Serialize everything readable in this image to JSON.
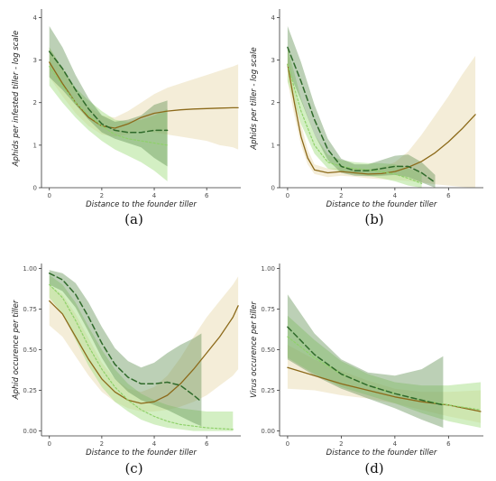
{
  "colors": {
    "light_green": "#8fd16a",
    "dark_green": "#2f6a2a",
    "brown": "#8c6a1a",
    "ribbon_tan": "#ebdfb8",
    "ribbon_light": "#a8df88",
    "ribbon_dark": "#5f8f50"
  },
  "chart_data": [
    {
      "id": "a",
      "type": "line",
      "panel_label": "(a)",
      "xlabel": "Distance to the founder tiller",
      "ylabel": "Aphids per infested tiller - log scale",
      "xlim": [
        -0.3,
        7.3
      ],
      "ylim": [
        0,
        4.2
      ],
      "xticks": [
        0,
        2,
        4,
        6
      ],
      "yticks": [
        0,
        1,
        2,
        3,
        4
      ],
      "x_tick_labels": [
        "0",
        "2",
        "4",
        "6"
      ],
      "y_tick_labels": [
        "0",
        "1",
        "2",
        "3",
        "4"
      ],
      "grid": false,
      "series": [
        {
          "style": "solid",
          "color": "brown",
          "ribbon": "ribbon_tan",
          "x": [
            0,
            0.5,
            1,
            1.5,
            2,
            2.5,
            3,
            3.5,
            4,
            4.5,
            5,
            5.5,
            6,
            6.5,
            7,
            7.2
          ],
          "y": [
            2.95,
            2.45,
            2.0,
            1.65,
            1.45,
            1.4,
            1.5,
            1.65,
            1.75,
            1.8,
            1.83,
            1.85,
            1.86,
            1.87,
            1.88,
            1.88
          ],
          "lower": [
            2.6,
            2.15,
            1.75,
            1.45,
            1.25,
            1.2,
            1.25,
            1.35,
            1.3,
            1.25,
            1.2,
            1.15,
            1.1,
            1.0,
            0.95,
            0.9
          ],
          "upper": [
            3.3,
            2.8,
            2.3,
            1.9,
            1.7,
            1.65,
            1.8,
            2.0,
            2.2,
            2.35,
            2.45,
            2.55,
            2.65,
            2.75,
            2.85,
            2.9
          ]
        },
        {
          "style": "dotted",
          "color": "light_green",
          "ribbon": "ribbon_light",
          "x": [
            0,
            0.5,
            1,
            1.5,
            2,
            2.5,
            3,
            3.5,
            4,
            4.5
          ],
          "y": [
            2.85,
            2.4,
            2.0,
            1.7,
            1.45,
            1.25,
            1.15,
            1.1,
            1.05,
            1.0
          ],
          "lower": [
            2.4,
            2.0,
            1.65,
            1.35,
            1.1,
            0.9,
            0.75,
            0.6,
            0.4,
            0.15
          ],
          "upper": [
            3.3,
            2.8,
            2.35,
            2.05,
            1.8,
            1.6,
            1.55,
            1.6,
            1.7,
            1.85
          ]
        },
        {
          "style": "dashed",
          "color": "dark_green",
          "ribbon": "ribbon_dark",
          "x": [
            0,
            0.5,
            1,
            1.5,
            2,
            2.5,
            3,
            3.5,
            4,
            4.5
          ],
          "y": [
            3.2,
            2.8,
            2.3,
            1.85,
            1.5,
            1.35,
            1.3,
            1.3,
            1.35,
            1.35
          ],
          "lower": [
            2.6,
            2.3,
            1.95,
            1.6,
            1.3,
            1.15,
            1.05,
            0.95,
            0.7,
            0.5
          ],
          "upper": [
            3.8,
            3.3,
            2.65,
            2.1,
            1.7,
            1.55,
            1.6,
            1.7,
            1.95,
            2.05
          ]
        }
      ]
    },
    {
      "id": "b",
      "type": "line",
      "panel_label": "(b)",
      "xlabel": "Distance to the founder tiller",
      "ylabel": "Aphids per tiller - log scale",
      "xlim": [
        -0.3,
        7.3
      ],
      "ylim": [
        0,
        4.2
      ],
      "xticks": [
        0,
        2,
        4,
        6
      ],
      "yticks": [
        0,
        1,
        2,
        3,
        4
      ],
      "x_tick_labels": [
        "0",
        "2",
        "4",
        "6"
      ],
      "y_tick_labels": [
        "0",
        "1",
        "2",
        "3",
        "4"
      ],
      "grid": false,
      "series": [
        {
          "style": "solid",
          "color": "brown",
          "ribbon": "ribbon_tan",
          "x": [
            0,
            0.25,
            0.5,
            0.75,
            1,
            1.5,
            2,
            2.5,
            3,
            3.5,
            4,
            4.5,
            5,
            5.5,
            6,
            6.5,
            7
          ],
          "y": [
            2.9,
            2.0,
            1.2,
            0.7,
            0.42,
            0.35,
            0.38,
            0.35,
            0.32,
            0.33,
            0.38,
            0.48,
            0.62,
            0.82,
            1.08,
            1.38,
            1.72
          ],
          "lower": [
            2.5,
            1.7,
            1.0,
            0.55,
            0.32,
            0.25,
            0.28,
            0.26,
            0.22,
            0.2,
            0.18,
            0.16,
            0.12,
            0.08,
            0.05,
            0.02,
            0.0
          ],
          "upper": [
            3.3,
            2.35,
            1.5,
            0.9,
            0.55,
            0.45,
            0.48,
            0.45,
            0.44,
            0.48,
            0.6,
            0.85,
            1.25,
            1.7,
            2.15,
            2.65,
            3.1
          ]
        },
        {
          "style": "dotted",
          "color": "light_green",
          "ribbon": "ribbon_light",
          "x": [
            0,
            0.5,
            1,
            1.5,
            2,
            2.5,
            3,
            3.5,
            4,
            4.5,
            5
          ],
          "y": [
            2.9,
            1.8,
            1.0,
            0.6,
            0.5,
            0.45,
            0.42,
            0.38,
            0.32,
            0.22,
            0.1
          ],
          "lower": [
            2.5,
            1.5,
            0.8,
            0.45,
            0.38,
            0.32,
            0.28,
            0.22,
            0.15,
            0.05,
            0.0
          ],
          "upper": [
            3.3,
            2.1,
            1.25,
            0.78,
            0.65,
            0.6,
            0.58,
            0.58,
            0.55,
            0.45,
            0.35
          ]
        },
        {
          "style": "dashed",
          "color": "dark_green",
          "ribbon": "ribbon_dark",
          "x": [
            0,
            0.5,
            1,
            1.5,
            2,
            2.5,
            3,
            3.5,
            4,
            4.5,
            5,
            5.5
          ],
          "y": [
            3.3,
            2.5,
            1.6,
            0.9,
            0.5,
            0.4,
            0.4,
            0.45,
            0.5,
            0.5,
            0.35,
            0.12
          ],
          "lower": [
            2.8,
            2.05,
            1.25,
            0.65,
            0.35,
            0.28,
            0.27,
            0.28,
            0.3,
            0.25,
            0.12,
            0.0
          ],
          "upper": [
            3.8,
            2.95,
            1.95,
            1.15,
            0.68,
            0.55,
            0.55,
            0.65,
            0.75,
            0.78,
            0.6,
            0.3
          ]
        }
      ]
    },
    {
      "id": "c",
      "type": "line",
      "panel_label": "(c)",
      "xlabel": "Distance to the founder tiller",
      "ylabel": "Aphid occurence per tiller",
      "xlim": [
        -0.3,
        7.3
      ],
      "ylim": [
        -0.03,
        1.03
      ],
      "xticks": [
        0,
        2,
        4,
        6
      ],
      "yticks": [
        0.0,
        0.25,
        0.5,
        0.75,
        1.0
      ],
      "x_tick_labels": [
        "0",
        "2",
        "4",
        "6"
      ],
      "y_tick_labels": [
        "0.00",
        "0.25",
        "0.50",
        "0.75",
        "1.00"
      ],
      "grid": false,
      "series": [
        {
          "style": "solid",
          "color": "brown",
          "ribbon": "ribbon_tan",
          "x": [
            0,
            0.5,
            1,
            1.5,
            2,
            2.5,
            3,
            3.5,
            4,
            4.5,
            5,
            5.5,
            6,
            6.5,
            7,
            7.2
          ],
          "y": [
            0.8,
            0.72,
            0.58,
            0.44,
            0.32,
            0.24,
            0.19,
            0.17,
            0.18,
            0.22,
            0.29,
            0.38,
            0.48,
            0.58,
            0.7,
            0.77
          ],
          "lower": [
            0.65,
            0.58,
            0.46,
            0.34,
            0.24,
            0.18,
            0.14,
            0.12,
            0.12,
            0.13,
            0.15,
            0.18,
            0.22,
            0.28,
            0.34,
            0.38
          ],
          "upper": [
            0.9,
            0.84,
            0.72,
            0.57,
            0.42,
            0.32,
            0.26,
            0.24,
            0.27,
            0.34,
            0.45,
            0.58,
            0.7,
            0.8,
            0.9,
            0.95
          ]
        },
        {
          "style": "dotted",
          "color": "light_green",
          "ribbon": "ribbon_light",
          "x": [
            0,
            0.5,
            1,
            1.5,
            2,
            2.5,
            3,
            3.5,
            4,
            4.5,
            5,
            5.5,
            6,
            6.5,
            7
          ],
          "y": [
            0.9,
            0.82,
            0.68,
            0.52,
            0.38,
            0.27,
            0.19,
            0.13,
            0.09,
            0.06,
            0.04,
            0.03,
            0.02,
            0.015,
            0.01
          ],
          "lower": [
            0.82,
            0.72,
            0.56,
            0.4,
            0.27,
            0.18,
            0.12,
            0.07,
            0.04,
            0.02,
            0.01,
            0.0,
            0.0,
            0.0,
            0.0
          ],
          "upper": [
            0.96,
            0.9,
            0.79,
            0.64,
            0.5,
            0.38,
            0.29,
            0.23,
            0.19,
            0.16,
            0.14,
            0.13,
            0.12,
            0.12,
            0.12
          ]
        },
        {
          "style": "dashed",
          "color": "dark_green",
          "ribbon": "ribbon_dark",
          "x": [
            0,
            0.5,
            1,
            1.5,
            2,
            2.5,
            3,
            3.5,
            4,
            4.5,
            5,
            5.5,
            5.8
          ],
          "y": [
            0.97,
            0.93,
            0.84,
            0.7,
            0.54,
            0.41,
            0.33,
            0.29,
            0.29,
            0.3,
            0.28,
            0.22,
            0.18
          ],
          "lower": [
            0.9,
            0.86,
            0.76,
            0.61,
            0.45,
            0.32,
            0.24,
            0.19,
            0.16,
            0.13,
            0.09,
            0.05,
            0.03
          ],
          "upper": [
            0.99,
            0.97,
            0.91,
            0.79,
            0.64,
            0.51,
            0.43,
            0.39,
            0.42,
            0.48,
            0.53,
            0.57,
            0.6
          ]
        }
      ]
    },
    {
      "id": "d",
      "type": "line",
      "panel_label": "(d)",
      "xlabel": "Distance to the founder tiller",
      "ylabel": "Virus occurence per tiller",
      "xlim": [
        -0.3,
        7.3
      ],
      "ylim": [
        -0.03,
        1.03
      ],
      "xticks": [
        0,
        2,
        4,
        6
      ],
      "yticks": [
        0.0,
        0.25,
        0.5,
        0.75,
        1.0
      ],
      "x_tick_labels": [
        "0",
        "2",
        "4",
        "6"
      ],
      "y_tick_labels": [
        "0.00",
        "0.25",
        "0.50",
        "0.75",
        "1.00"
      ],
      "grid": false,
      "series": [
        {
          "style": "solid",
          "color": "brown",
          "ribbon": "ribbon_tan",
          "x": [
            0,
            1,
            2,
            3,
            4,
            5,
            6,
            7.2
          ],
          "y": [
            0.39,
            0.34,
            0.29,
            0.25,
            0.21,
            0.18,
            0.16,
            0.12
          ],
          "lower": [
            0.26,
            0.25,
            0.22,
            0.2,
            0.17,
            0.13,
            0.09,
            0.05
          ],
          "upper": [
            0.53,
            0.44,
            0.37,
            0.31,
            0.26,
            0.24,
            0.24,
            0.25
          ]
        },
        {
          "style": "dotted",
          "color": "light_green",
          "ribbon": "ribbon_light",
          "x": [
            0,
            1,
            2,
            3,
            4,
            5,
            6,
            7.2
          ],
          "y": [
            0.58,
            0.45,
            0.35,
            0.28,
            0.23,
            0.19,
            0.16,
            0.13
          ],
          "lower": [
            0.45,
            0.35,
            0.27,
            0.22,
            0.17,
            0.11,
            0.06,
            0.02
          ],
          "upper": [
            0.71,
            0.56,
            0.43,
            0.35,
            0.3,
            0.28,
            0.28,
            0.3
          ]
        },
        {
          "style": "dashed",
          "color": "dark_green",
          "ribbon": "ribbon_dark",
          "x": [
            0,
            1,
            2,
            3,
            4,
            5,
            5.8
          ],
          "y": [
            0.64,
            0.47,
            0.35,
            0.28,
            0.23,
            0.19,
            0.16
          ],
          "lower": [
            0.44,
            0.34,
            0.26,
            0.2,
            0.14,
            0.07,
            0.02
          ],
          "upper": [
            0.84,
            0.6,
            0.44,
            0.36,
            0.34,
            0.38,
            0.46
          ]
        }
      ]
    }
  ]
}
